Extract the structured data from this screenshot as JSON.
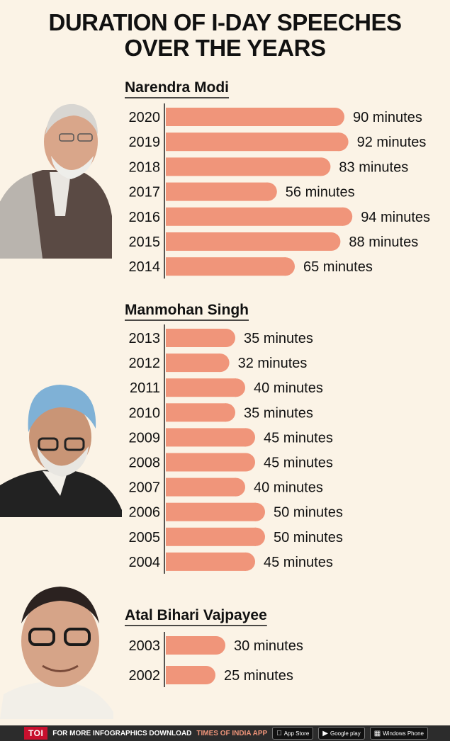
{
  "title": {
    "line1": "DURATION OF I-DAY SPEECHES",
    "line2": "OVER THE YEARS"
  },
  "colors": {
    "bar": "#f0957a",
    "background": "#fbf3e6",
    "footer": "#2c2c2c",
    "logo": "#c8102e"
  },
  "chart_data": {
    "type": "bar",
    "orientation": "horizontal",
    "title": "DURATION OF I-DAY SPEECHES OVER THE YEARS",
    "unit": "minutes",
    "xlim": [
      0,
      100
    ],
    "groups": [
      {
        "name": "Narendra Modi",
        "categories": [
          "2020",
          "2019",
          "2018",
          "2017",
          "2016",
          "2015",
          "2014"
        ],
        "values": [
          90,
          92,
          83,
          56,
          94,
          88,
          65
        ],
        "labels": [
          "90 minutes",
          "92 minutes",
          "83 minutes",
          "56 minutes",
          "94 minutes",
          "88 minutes",
          "65 minutes"
        ]
      },
      {
        "name": "Manmohan Singh",
        "categories": [
          "2013",
          "2012",
          "2011",
          "2010",
          "2009",
          "2008",
          "2007",
          "2006",
          "2005",
          "2004"
        ],
        "values": [
          35,
          32,
          40,
          35,
          45,
          45,
          40,
          50,
          50,
          45
        ],
        "labels": [
          "35 minutes",
          "32 minutes",
          "40 minutes",
          "35 minutes",
          "45 minutes",
          "45 minutes",
          "40 minutes",
          "50 minutes",
          "50 minutes",
          "45 minutes"
        ]
      },
      {
        "name": "Atal Bihari Vajpayee",
        "categories": [
          "2003",
          "2002"
        ],
        "values": [
          30,
          25
        ],
        "labels": [
          "30 minutes",
          "25 minutes"
        ]
      }
    ]
  },
  "footer": {
    "logo": "TOI",
    "text": "FOR MORE  INFOGRAPHICS DOWNLOAD",
    "app": "TIMES OF INDIA APP",
    "stores": [
      {
        "icon": "apple-icon",
        "label": "App Store"
      },
      {
        "icon": "play-icon",
        "label": "Google play"
      },
      {
        "icon": "windows-icon",
        "label": "Windows Phone"
      }
    ]
  }
}
